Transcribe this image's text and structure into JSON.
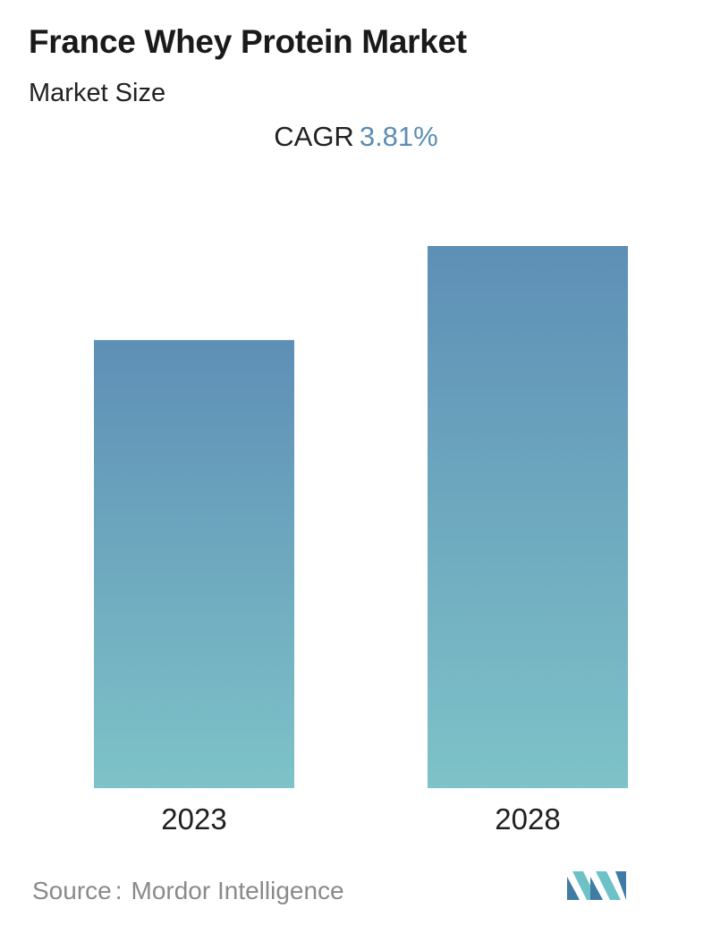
{
  "header": {
    "title": "France Whey Protein Market",
    "subtitle": "Market Size",
    "cagr_label": "CAGR",
    "cagr_value": "3.81%"
  },
  "footer": {
    "source_label": "Source",
    "source_separator": ":",
    "source_name": "Mordor Intelligence",
    "logo_icon": "mordor-intelligence-logo-icon"
  },
  "colors": {
    "bar_top": "#5e8fb6",
    "bar_bottom": "#7ec3c8",
    "cagr_accent": "#5b8db3",
    "logo_dark": "#3f7ba3",
    "logo_light": "#6cc2c6"
  },
  "chart_data": {
    "type": "bar",
    "categories": [
      "2023",
      "2028"
    ],
    "values": [
      1.0,
      1.21
    ],
    "value_note": "relative bar heights; no axis or values printed",
    "ylim": [
      0,
      1.21
    ],
    "grid": false,
    "legend": "none"
  }
}
